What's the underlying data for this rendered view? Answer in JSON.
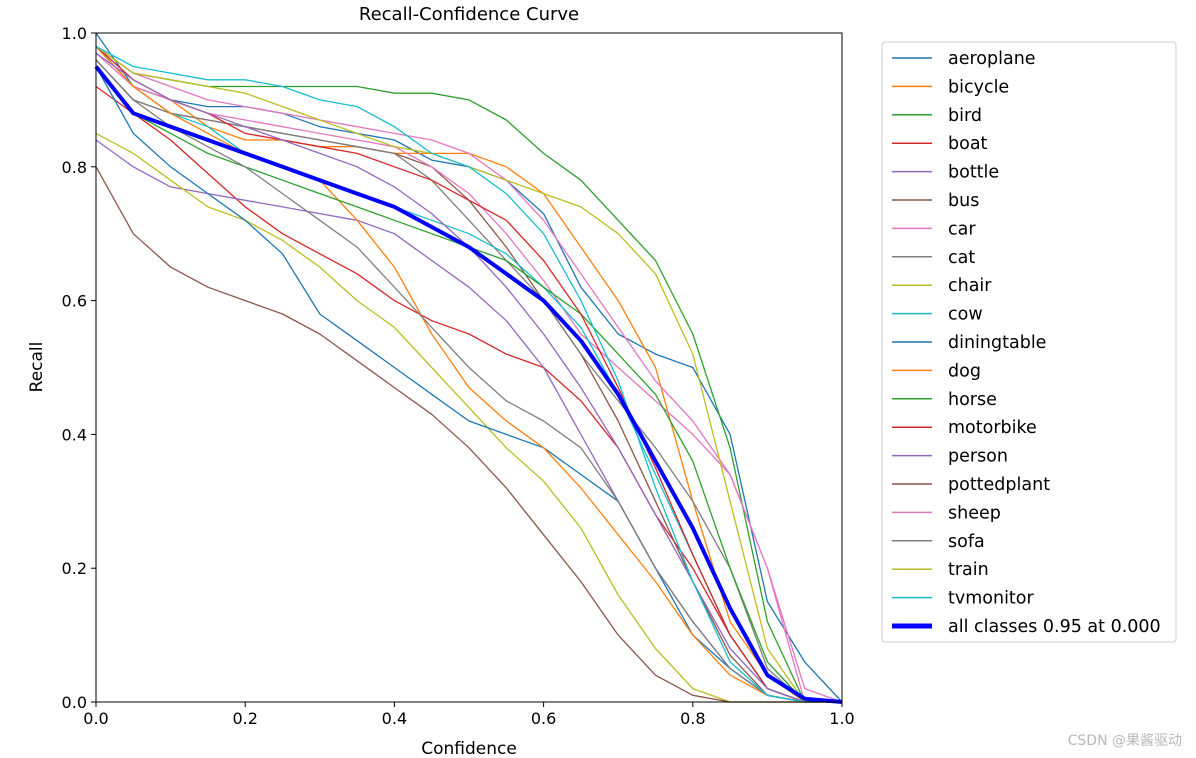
{
  "chart_data": {
    "type": "line",
    "title": "Recall-Confidence Curve",
    "xlabel": "Confidence",
    "ylabel": "Recall",
    "xlim": [
      0.0,
      1.0
    ],
    "ylim": [
      0.0,
      1.0
    ],
    "xticks": [
      "0.0",
      "0.2",
      "0.4",
      "0.6",
      "0.8",
      "1.0"
    ],
    "yticks": [
      "0.0",
      "0.2",
      "0.4",
      "0.6",
      "0.8",
      "1.0"
    ],
    "legend_position": "outside-right",
    "x": [
      0.0,
      0.05,
      0.1,
      0.15,
      0.2,
      0.25,
      0.3,
      0.35,
      0.4,
      0.45,
      0.5,
      0.55,
      0.6,
      0.65,
      0.7,
      0.75,
      0.8,
      0.85,
      0.9,
      0.95,
      1.0
    ],
    "series": [
      {
        "name": "aeroplane",
        "color": "#1f77b4",
        "values": [
          1.0,
          0.92,
          0.9,
          0.89,
          0.89,
          0.88,
          0.86,
          0.85,
          0.84,
          0.81,
          0.8,
          0.78,
          0.73,
          0.62,
          0.55,
          0.52,
          0.5,
          0.4,
          0.15,
          0.06,
          0.0
        ]
      },
      {
        "name": "bicycle",
        "color": "#ff7f0e",
        "values": [
          0.98,
          0.92,
          0.9,
          0.86,
          0.84,
          0.84,
          0.83,
          0.83,
          0.82,
          0.82,
          0.82,
          0.8,
          0.76,
          0.68,
          0.6,
          0.5,
          0.3,
          0.12,
          0.04,
          0.0,
          0.0
        ]
      },
      {
        "name": "bird",
        "color": "#2ca02c",
        "values": [
          0.98,
          0.94,
          0.93,
          0.92,
          0.92,
          0.92,
          0.92,
          0.92,
          0.91,
          0.91,
          0.9,
          0.87,
          0.82,
          0.78,
          0.72,
          0.66,
          0.55,
          0.38,
          0.12,
          0.0,
          0.0
        ]
      },
      {
        "name": "boat",
        "color": "#d62728",
        "values": [
          0.92,
          0.88,
          0.84,
          0.79,
          0.74,
          0.7,
          0.67,
          0.64,
          0.6,
          0.57,
          0.55,
          0.52,
          0.5,
          0.45,
          0.38,
          0.28,
          0.2,
          0.1,
          0.02,
          0.0,
          0.0
        ]
      },
      {
        "name": "bottle",
        "color": "#9467bd",
        "values": [
          0.84,
          0.8,
          0.77,
          0.76,
          0.75,
          0.74,
          0.73,
          0.72,
          0.7,
          0.66,
          0.62,
          0.57,
          0.5,
          0.4,
          0.3,
          0.2,
          0.12,
          0.05,
          0.01,
          0.0,
          0.0
        ]
      },
      {
        "name": "bus",
        "color": "#8c564b",
        "values": [
          0.96,
          0.9,
          0.88,
          0.87,
          0.86,
          0.85,
          0.84,
          0.83,
          0.82,
          0.8,
          0.75,
          0.68,
          0.6,
          0.52,
          0.42,
          0.3,
          0.18,
          0.07,
          0.01,
          0.0,
          0.0
        ]
      },
      {
        "name": "car",
        "color": "#e377c2",
        "values": [
          0.97,
          0.92,
          0.9,
          0.88,
          0.87,
          0.86,
          0.85,
          0.84,
          0.83,
          0.8,
          0.76,
          0.7,
          0.63,
          0.55,
          0.5,
          0.45,
          0.4,
          0.34,
          0.2,
          0.0,
          0.0
        ]
      },
      {
        "name": "cat",
        "color": "#7f7f7f",
        "values": [
          0.96,
          0.9,
          0.88,
          0.87,
          0.86,
          0.85,
          0.84,
          0.83,
          0.82,
          0.78,
          0.72,
          0.66,
          0.6,
          0.52,
          0.45,
          0.38,
          0.3,
          0.2,
          0.05,
          0.0,
          0.0
        ]
      },
      {
        "name": "chair",
        "color": "#bcbd22",
        "values": [
          0.85,
          0.82,
          0.78,
          0.74,
          0.72,
          0.69,
          0.65,
          0.6,
          0.56,
          0.5,
          0.44,
          0.38,
          0.33,
          0.26,
          0.16,
          0.08,
          0.02,
          0.0,
          0.0,
          0.0,
          0.0
        ]
      },
      {
        "name": "cow",
        "color": "#17becf",
        "values": [
          0.98,
          0.92,
          0.88,
          0.86,
          0.82,
          0.8,
          0.78,
          0.76,
          0.74,
          0.72,
          0.7,
          0.67,
          0.62,
          0.56,
          0.46,
          0.34,
          0.22,
          0.1,
          0.02,
          0.0,
          0.0
        ]
      },
      {
        "name": "diningtable",
        "color": "#1f77b4",
        "values": [
          0.95,
          0.85,
          0.8,
          0.76,
          0.72,
          0.67,
          0.58,
          0.54,
          0.5,
          0.46,
          0.42,
          0.4,
          0.38,
          0.34,
          0.3,
          0.2,
          0.1,
          0.05,
          0.01,
          0.0,
          0.0
        ]
      },
      {
        "name": "dog",
        "color": "#ff7f0e",
        "values": [
          0.98,
          0.92,
          0.88,
          0.85,
          0.82,
          0.8,
          0.78,
          0.72,
          0.65,
          0.55,
          0.47,
          0.42,
          0.38,
          0.32,
          0.25,
          0.18,
          0.1,
          0.04,
          0.01,
          0.0,
          0.0
        ]
      },
      {
        "name": "horse",
        "color": "#2ca02c",
        "values": [
          0.95,
          0.88,
          0.85,
          0.82,
          0.8,
          0.78,
          0.76,
          0.74,
          0.72,
          0.7,
          0.68,
          0.66,
          0.62,
          0.58,
          0.52,
          0.46,
          0.36,
          0.2,
          0.06,
          0.0,
          0.0
        ]
      },
      {
        "name": "motorbike",
        "color": "#d62728",
        "values": [
          0.98,
          0.93,
          0.9,
          0.88,
          0.85,
          0.84,
          0.83,
          0.82,
          0.8,
          0.78,
          0.75,
          0.72,
          0.66,
          0.58,
          0.47,
          0.35,
          0.22,
          0.1,
          0.02,
          0.0,
          0.0
        ]
      },
      {
        "name": "person",
        "color": "#9467bd",
        "values": [
          0.97,
          0.93,
          0.9,
          0.88,
          0.86,
          0.84,
          0.82,
          0.8,
          0.77,
          0.73,
          0.68,
          0.62,
          0.55,
          0.47,
          0.38,
          0.28,
          0.18,
          0.08,
          0.02,
          0.0,
          0.0
        ]
      },
      {
        "name": "pottedplant",
        "color": "#8c564b",
        "values": [
          0.8,
          0.7,
          0.65,
          0.62,
          0.6,
          0.58,
          0.55,
          0.51,
          0.47,
          0.43,
          0.38,
          0.32,
          0.25,
          0.18,
          0.1,
          0.04,
          0.01,
          0.0,
          0.0,
          0.0,
          0.0
        ]
      },
      {
        "name": "sheep",
        "color": "#e377c2",
        "values": [
          0.98,
          0.94,
          0.92,
          0.9,
          0.89,
          0.88,
          0.87,
          0.86,
          0.85,
          0.84,
          0.82,
          0.78,
          0.72,
          0.64,
          0.56,
          0.48,
          0.42,
          0.34,
          0.2,
          0.02,
          0.0
        ]
      },
      {
        "name": "sofa",
        "color": "#7f7f7f",
        "values": [
          0.96,
          0.9,
          0.86,
          0.83,
          0.8,
          0.76,
          0.72,
          0.68,
          0.62,
          0.56,
          0.5,
          0.45,
          0.42,
          0.38,
          0.3,
          0.2,
          0.12,
          0.05,
          0.01,
          0.0,
          0.0
        ]
      },
      {
        "name": "train",
        "color": "#bcbd22",
        "values": [
          0.98,
          0.94,
          0.93,
          0.92,
          0.91,
          0.89,
          0.87,
          0.85,
          0.83,
          0.82,
          0.8,
          0.78,
          0.76,
          0.74,
          0.7,
          0.64,
          0.52,
          0.3,
          0.08,
          0.0,
          0.0
        ]
      },
      {
        "name": "tvmonitor",
        "color": "#17becf",
        "values": [
          0.98,
          0.95,
          0.94,
          0.93,
          0.93,
          0.92,
          0.9,
          0.89,
          0.86,
          0.82,
          0.8,
          0.76,
          0.7,
          0.6,
          0.48,
          0.32,
          0.18,
          0.06,
          0.01,
          0.0,
          0.0
        ]
      },
      {
        "name": "all classes 0.95 at 0.000",
        "color": "#0000ff",
        "thick": true,
        "values": [
          0.95,
          0.88,
          0.86,
          0.84,
          0.82,
          0.8,
          0.78,
          0.76,
          0.74,
          0.71,
          0.68,
          0.64,
          0.6,
          0.54,
          0.46,
          0.36,
          0.26,
          0.14,
          0.04,
          0.005,
          0.0
        ]
      }
    ]
  },
  "watermark": "CSDN @果酱驱动"
}
